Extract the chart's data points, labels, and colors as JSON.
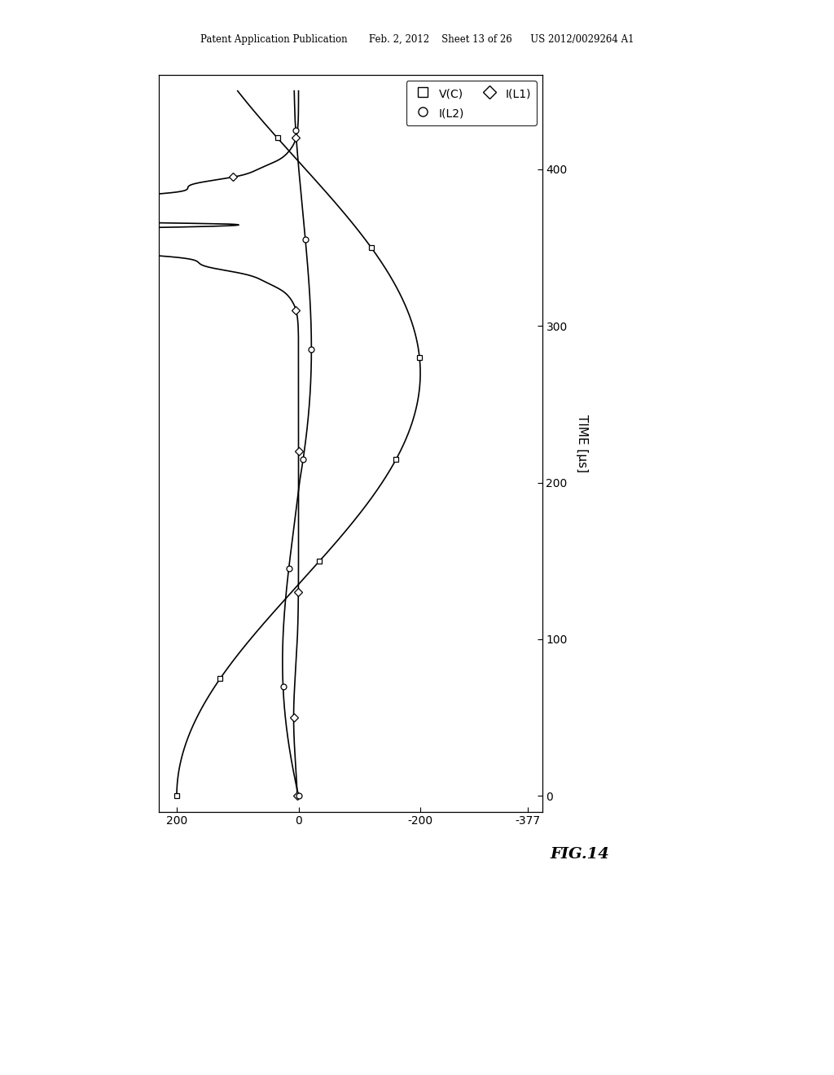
{
  "header": "Patent Application Publication       Feb. 2, 2012    Sheet 13 of 26      US 2012/0029264 A1",
  "fig_label": "FIG.14",
  "time_label": "TIME [μs]",
  "value_ticks": [
    200,
    0,
    -200,
    -377
  ],
  "time_ticks": [
    0,
    100,
    200,
    300,
    400
  ],
  "xlim": [
    230,
    -400
  ],
  "ylim": [
    -10,
    460
  ],
  "background": "#ffffff",
  "linewidth": 1.2,
  "markersize": 5,
  "legend_entries": [
    {
      "label": "V(C)",
      "marker": "s"
    },
    {
      "label": "I(L1)",
      "marker": "D"
    },
    {
      "label": "I(L2)",
      "marker": "o"
    }
  ]
}
